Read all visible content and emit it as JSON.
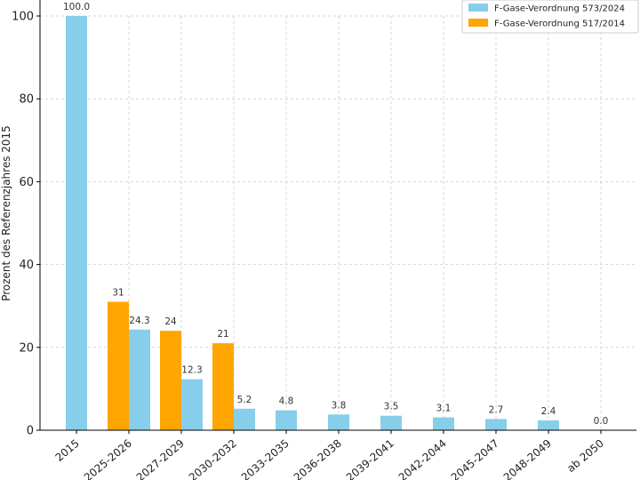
{
  "chart_data": {
    "type": "bar",
    "title": "",
    "xlabel": "",
    "ylabel": "Prozent des Referenzjahres 2015",
    "ylim": [
      0,
      100
    ],
    "yticks": [
      0,
      20,
      40,
      60,
      80,
      100
    ],
    "grid": true,
    "legend_position": "top-right",
    "categories": [
      "2015",
      "2025-2026",
      "2027-2029",
      "2030-2032",
      "2033-2035",
      "2036-2038",
      "2039-2041",
      "2042-2044",
      "2045-2047",
      "2048-2049",
      "ab 2050"
    ],
    "series": [
      {
        "name": "F-Gase-Verordnung 573/2024",
        "color": "#87ceeb",
        "values": [
          100.0,
          24.3,
          12.3,
          5.2,
          4.8,
          3.8,
          3.5,
          3.1,
          2.7,
          2.4,
          0.0
        ],
        "labels": [
          "100.0",
          "24.3",
          "12.3",
          "5.2",
          "4.8",
          "3.8",
          "3.5",
          "3.1",
          "2.7",
          "2.4",
          "0.0"
        ]
      },
      {
        "name": "F-Gase-Verordnung 517/2014",
        "color": "#ffa500",
        "values": [
          null,
          31,
          24,
          21,
          null,
          null,
          null,
          null,
          null,
          null,
          null
        ],
        "labels": [
          null,
          "31",
          "24",
          "21",
          null,
          null,
          null,
          null,
          null,
          null,
          null
        ]
      }
    ]
  }
}
